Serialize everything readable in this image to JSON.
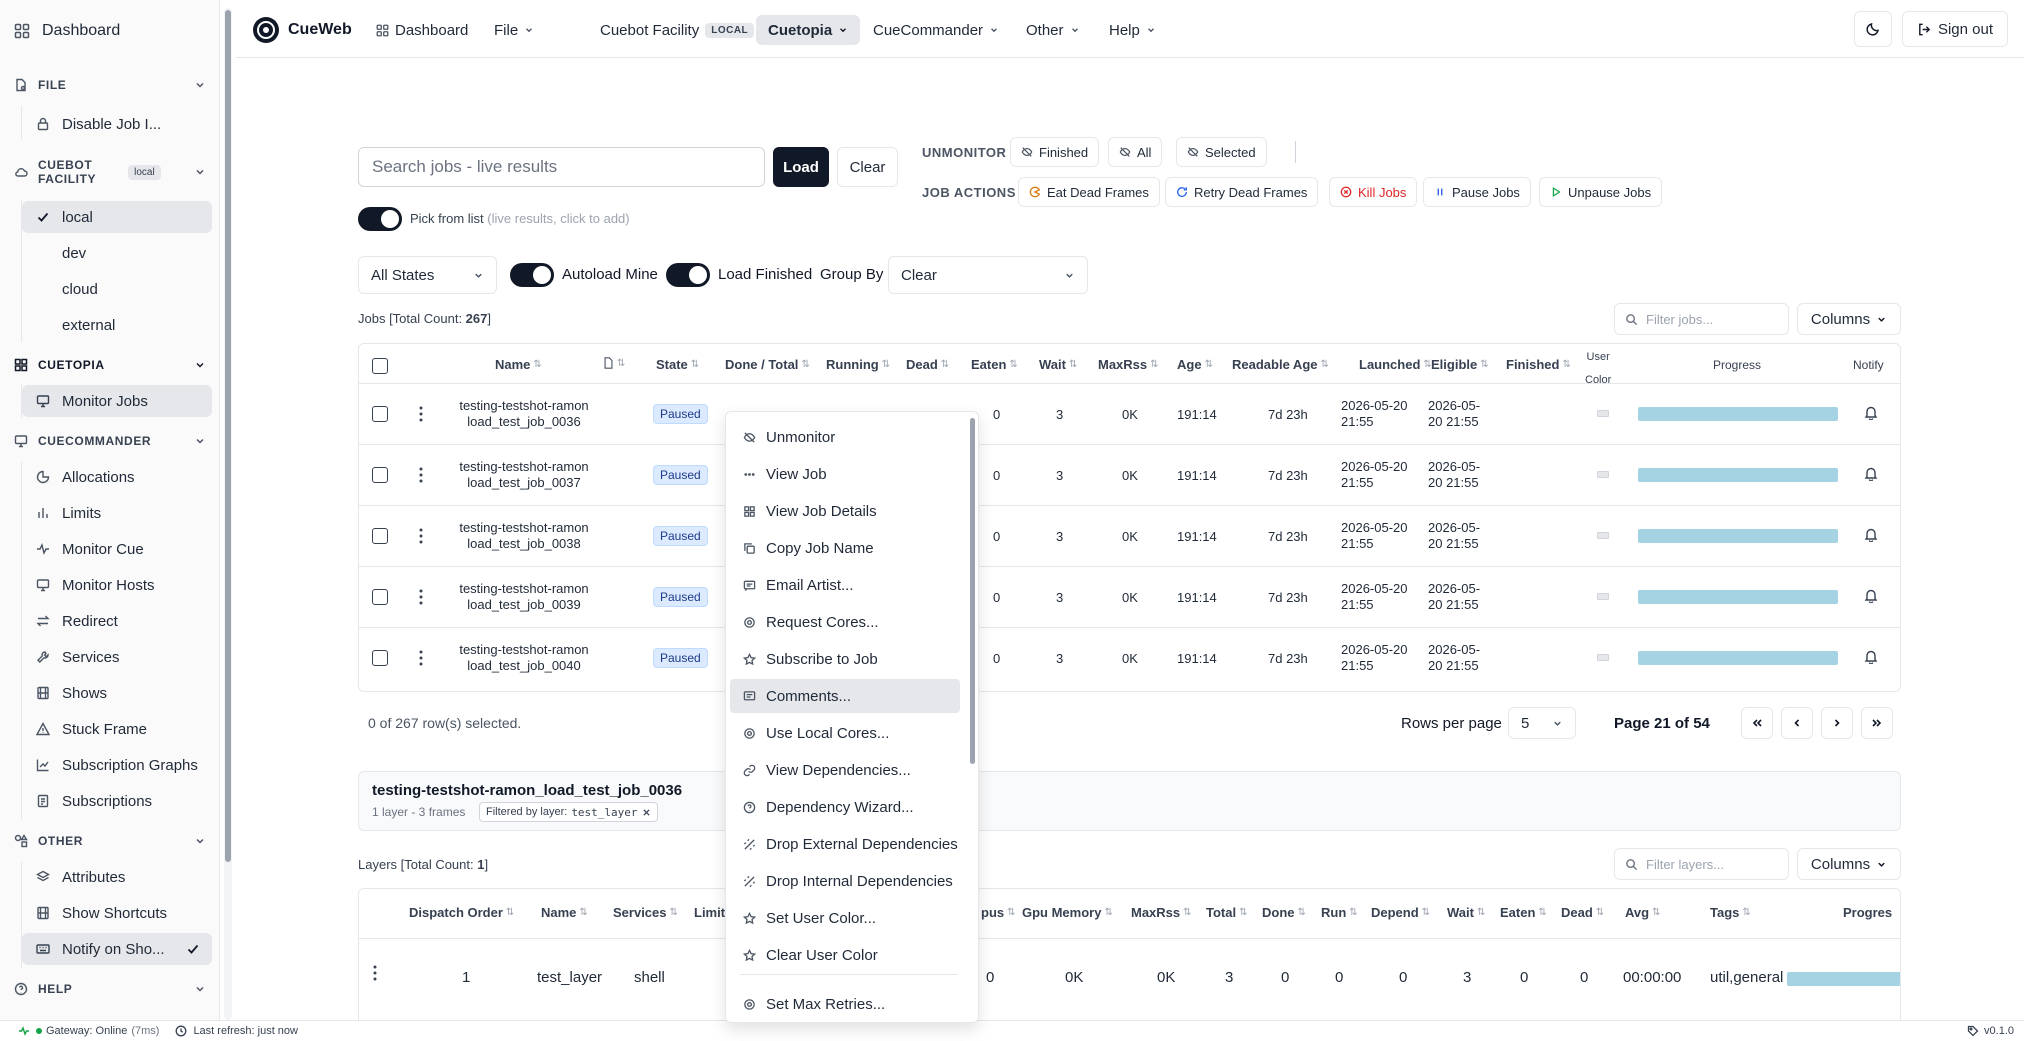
{
  "sidebar": {
    "dashboard": "Dashboard",
    "file_group": "FILE",
    "file_items": [
      "Disable Job I..."
    ],
    "cuebot_group_line1": "CUEBOT",
    "cuebot_group_line2": "FACILITY",
    "cuebot_badge": "local",
    "facility_items": [
      "local",
      "dev",
      "cloud",
      "external"
    ],
    "cuetopia_group": "CUETOPIA",
    "cuetopia_items": [
      "Monitor Jobs"
    ],
    "cuecommander_group": "CUECOMMANDER",
    "cuecommander_items": [
      "Allocations",
      "Limits",
      "Monitor Cue",
      "Monitor Hosts",
      "Redirect",
      "Services",
      "Shows",
      "Stuck Frame",
      "Subscription Graphs",
      "Subscriptions"
    ],
    "other_group": "OTHER",
    "other_items": [
      "Attributes",
      "Show Shortcuts",
      "Notify on Sho..."
    ],
    "help_group": "HELP"
  },
  "statusbar": {
    "gateway": "Gateway: Online",
    "latency": "(7ms)",
    "refresh": "Last refresh: just now",
    "version": "v0.1.0"
  },
  "nav": {
    "brand": "CueWeb",
    "dashboard": "Dashboard",
    "file": "File",
    "facility": "Cuebot Facility",
    "facility_badge": "LOCAL",
    "cuetopia": "Cuetopia",
    "cuecommander": "CueCommander",
    "other": "Other",
    "help": "Help",
    "sign_out": "Sign out"
  },
  "search": {
    "placeholder": "Search jobs - live results",
    "load": "Load",
    "clear": "Clear",
    "pick_label": "Pick from list",
    "pick_hint": "(live results, click to add)"
  },
  "unmonitor": {
    "label": "UNMONITOR",
    "finished": "Finished",
    "all": "All",
    "selected": "Selected"
  },
  "job_actions": {
    "label": "JOB ACTIONS",
    "eat": "Eat Dead Frames",
    "retry": "Retry Dead Frames",
    "kill": "Kill Jobs",
    "pause": "Pause Jobs",
    "unpause": "Unpause Jobs"
  },
  "filters": {
    "states": "All States",
    "autoload": "Autoload Mine",
    "load_finished": "Load Finished",
    "group_by": "Group By",
    "group_value": "Clear"
  },
  "jobs": {
    "count_prefix": "Jobs [Total Count: ",
    "count": "267",
    "count_suffix": "]",
    "filter_placeholder": "Filter jobs...",
    "columns_btn": "Columns",
    "headers": [
      "Name",
      "State",
      "Done / Total",
      "Running",
      "Dead",
      "Eaten",
      "Wait",
      "MaxRss",
      "Age",
      "Readable Age",
      "Launched",
      "Eligible",
      "Finished",
      "User",
      "Color",
      "Progress",
      "Notify"
    ],
    "rows": [
      {
        "name1": "testing-testshot-ramon",
        "name2": "load_test_job_0036",
        "state": "Paused",
        "eaten": "0",
        "wait": "3",
        "maxrss": "0K",
        "age": "191:14",
        "readable": "7d 23h",
        "launched1": "2026-05-20",
        "launched2": "21:55",
        "eligible1": "2026-05-",
        "eligible2": "20 21:55"
      },
      {
        "name1": "testing-testshot-ramon",
        "name2": "load_test_job_0037",
        "state": "Paused",
        "eaten": "0",
        "wait": "3",
        "maxrss": "0K",
        "age": "191:14",
        "readable": "7d 23h",
        "launched1": "2026-05-20",
        "launched2": "21:55",
        "eligible1": "2026-05-",
        "eligible2": "20 21:55"
      },
      {
        "name1": "testing-testshot-ramon",
        "name2": "load_test_job_0038",
        "state": "Paused",
        "eaten": "0",
        "wait": "3",
        "maxrss": "0K",
        "age": "191:14",
        "readable": "7d 23h",
        "launched1": "2026-05-20",
        "launched2": "21:55",
        "eligible1": "2026-05-",
        "eligible2": "20 21:55"
      },
      {
        "name1": "testing-testshot-ramon",
        "name2": "load_test_job_0039",
        "state": "Paused",
        "eaten": "0",
        "wait": "3",
        "maxrss": "0K",
        "age": "191:14",
        "readable": "7d 23h",
        "launched1": "2026-05-20",
        "launched2": "21:55",
        "eligible1": "2026-05-",
        "eligible2": "20 21:55"
      },
      {
        "name1": "testing-testshot-ramon",
        "name2": "load_test_job_0040",
        "state": "Paused",
        "eaten": "0",
        "wait": "3",
        "maxrss": "0K",
        "age": "191:14",
        "readable": "7d 23h",
        "launched1": "2026-05-20",
        "launched2": "21:55",
        "eligible1": "2026-05-",
        "eligible2": "20 21:55"
      }
    ],
    "selected_text": "0 of 267 row(s) selected.",
    "rows_per_page_label": "Rows per page",
    "rows_per_page": "5",
    "page_text": "Page 21 of 54"
  },
  "job_detail": {
    "title": "testing-testshot-ramon_load_test_job_0036",
    "summary": "1 layer - 3 frames",
    "filter_label": "Filtered by layer:",
    "filter_value": "test_layer"
  },
  "layers": {
    "count_prefix": "Layers [Total Count: ",
    "count": "1",
    "count_suffix": "]",
    "filter_placeholder": "Filter layers...",
    "columns_btn": "Columns",
    "headers": [
      "Dispatch Order",
      "Name",
      "Services",
      "Limit",
      "pus",
      "Gpu Memory",
      "MaxRss",
      "Total",
      "Done",
      "Run",
      "Depend",
      "Wait",
      "Eaten",
      "Dead",
      "Avg",
      "Tags",
      "Progres"
    ],
    "row": {
      "dispatch": "1",
      "name": "test_layer",
      "services": "shell",
      "gpus": "0",
      "gpu_memory": "0K",
      "maxrss": "0K",
      "total": "3",
      "done": "0",
      "run": "0",
      "depend": "0",
      "wait": "3",
      "eaten": "0",
      "dead": "0",
      "avg": "00:00:00",
      "tags": "util,general"
    }
  },
  "context_menu": {
    "items": [
      "Unmonitor",
      "View Job",
      "View Job Details",
      "Copy Job Name",
      "Email Artist...",
      "Request Cores...",
      "Subscribe to Job",
      "Comments...",
      "Use Local Cores...",
      "View Dependencies...",
      "Dependency Wizard...",
      "Drop External Dependencies",
      "Drop Internal Dependencies",
      "Set User Color...",
      "Clear User Color",
      "Set Max Retries..."
    ],
    "icons": [
      "eye-off-icon",
      "dots-icon",
      "grid-icon",
      "copy-icon",
      "mail-icon",
      "cpu-icon",
      "star-icon",
      "message-icon",
      "cpu-icon",
      "link-icon",
      "help-circle-icon",
      "unlink-icon",
      "unlink-icon",
      "star-icon",
      "star-icon",
      "settings-icon"
    ],
    "highlighted": "Comments..."
  },
  "colors": {
    "primary": "#111827",
    "paused_bg": "#dbeafe",
    "progress": "#a5d3e3",
    "kill": "#dc2626",
    "online": "#16a34a"
  }
}
